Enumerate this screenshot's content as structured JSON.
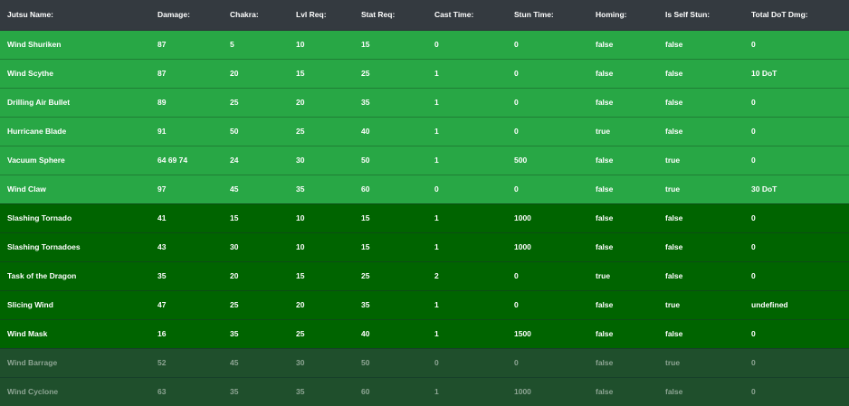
{
  "table": {
    "headers": [
      "Jutsu Name:",
      "Damage:",
      "Chakra:",
      "Lvl Req:",
      "Stat Req:",
      "Cast Time:",
      "Stun Time:",
      "Homing:",
      "Is Self Stun:",
      "Total DoT Dmg:"
    ],
    "tier_colors": {
      "light": "#28a745",
      "dark": "#006400",
      "faded": "#1f4f2c",
      "header": "#343a40"
    },
    "rows": [
      {
        "tier": "light",
        "cells": [
          "Wind Shuriken",
          "87",
          "5",
          "10",
          "15",
          "0",
          "0",
          "false",
          "false",
          "0"
        ]
      },
      {
        "tier": "light",
        "cells": [
          "Wind Scythe",
          "87",
          "20",
          "15",
          "25",
          "1",
          "0",
          "false",
          "false",
          "10 DoT"
        ]
      },
      {
        "tier": "light",
        "cells": [
          "Drilling Air Bullet",
          "89",
          "25",
          "20",
          "35",
          "1",
          "0",
          "false",
          "false",
          "0"
        ]
      },
      {
        "tier": "light",
        "cells": [
          "Hurricane Blade",
          "91",
          "50",
          "25",
          "40",
          "1",
          "0",
          "true",
          "false",
          "0"
        ]
      },
      {
        "tier": "light",
        "cells": [
          "Vacuum Sphere",
          "64 69 74",
          "24",
          "30",
          "50",
          "1",
          "500",
          "false",
          "true",
          "0"
        ]
      },
      {
        "tier": "light",
        "cells": [
          "Wind Claw",
          "97",
          "45",
          "35",
          "60",
          "0",
          "0",
          "false",
          "true",
          "30 DoT"
        ]
      },
      {
        "tier": "dark",
        "cells": [
          "Slashing Tornado",
          "41",
          "15",
          "10",
          "15",
          "1",
          "1000",
          "false",
          "false",
          "0"
        ]
      },
      {
        "tier": "dark",
        "cells": [
          "Slashing Tornadoes",
          "43",
          "30",
          "10",
          "15",
          "1",
          "1000",
          "false",
          "false",
          "0"
        ]
      },
      {
        "tier": "dark",
        "cells": [
          "Task of the Dragon",
          "35",
          "20",
          "15",
          "25",
          "2",
          "0",
          "true",
          "false",
          "0"
        ]
      },
      {
        "tier": "dark",
        "cells": [
          "Slicing Wind",
          "47",
          "25",
          "20",
          "35",
          "1",
          "0",
          "false",
          "true",
          "undefined"
        ]
      },
      {
        "tier": "dark",
        "cells": [
          "Wind Mask",
          "16",
          "35",
          "25",
          "40",
          "1",
          "1500",
          "false",
          "false",
          "0"
        ]
      },
      {
        "tier": "faded",
        "cells": [
          "Wind Barrage",
          "52",
          "45",
          "30",
          "50",
          "0",
          "0",
          "false",
          "true",
          "0"
        ]
      },
      {
        "tier": "faded",
        "cells": [
          "Wind Cyclone",
          "63",
          "35",
          "35",
          "60",
          "1",
          "1000",
          "false",
          "false",
          "0"
        ]
      }
    ]
  }
}
